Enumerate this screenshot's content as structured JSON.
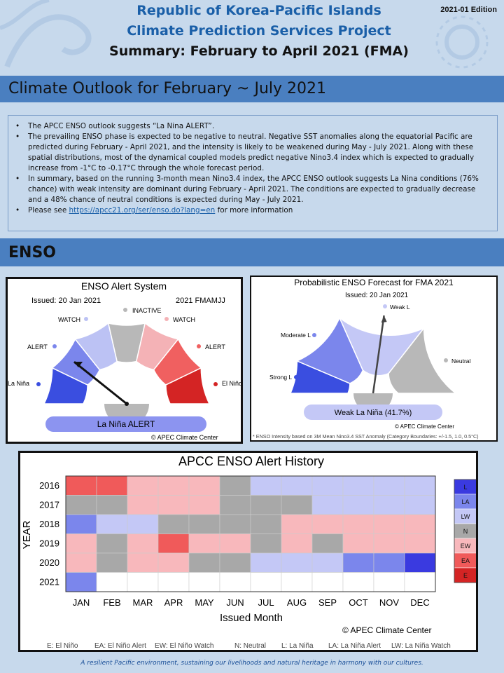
{
  "header": {
    "line1": "Republic of Korea-Pacific Islands",
    "line2": "Climate Prediction Services Project",
    "line3": "Summary: February to April 2021 (FMA)",
    "edition": "2021-01 Edition"
  },
  "outlook": {
    "title": "Climate Outlook for February ~ July 2021",
    "bullets": [
      "The APCC ENSO outlook suggests “La Nina ALERT”.",
      "The prevailing ENSO phase is expected to be negative to neutral. Negative SST anomalies along the equatorial Pacific are predicted during February - April 2021, and the intensity is likely to be weakened during May - July 2021. Along with these spatial distributions, most of the dynamical coupled models predict negative Nino3.4 index which is expected to gradually increase from -1°C to -0.17°C through the whole forecast period.",
      "In summary, based on the running 3-month mean Nino3.4 index, the APCC ENSO outlook suggests La Nina conditions (76% chance) with weak intensity are dominant during February - April 2021. The conditions are expected to gradually decrease and a 48% chance of neutral conditions is expected during May - July 2021."
    ],
    "link_prefix": "Please see ",
    "link_text": "https://apcc21.org/ser/enso.do?lang=en",
    "link_suffix": " for more information"
  },
  "enso_section": {
    "title": "ENSO"
  },
  "alert_system": {
    "title": "ENSO Alert System",
    "issued": "Issued: 20 Jan 2021",
    "period": "2021 FMAMJJ",
    "segments": [
      {
        "label": "La Niña",
        "color": "#3a4ee0"
      },
      {
        "label": "ALERT",
        "color": "#7b86ec"
      },
      {
        "label": "WATCH",
        "color": "#bcc2f4"
      },
      {
        "label": "INACTIVE",
        "color": "#b8b8b8"
      },
      {
        "label": "WATCH",
        "color": "#f4b2b6"
      },
      {
        "label": "ALERT",
        "color": "#f06060"
      },
      {
        "label": "El Niño",
        "color": "#d42424"
      }
    ],
    "pointer_segment": 1,
    "status": "La Niña ALERT",
    "status_color": "#8c94f0",
    "credit": "© APEC Climate Center"
  },
  "probabilistic": {
    "title": "Probabilistic ENSO Forecast for FMA 2021",
    "issued": "Issued: 20 Jan 2021",
    "segments": [
      {
        "label": "Strong L",
        "color": "#3a4ee0"
      },
      {
        "label": "Moderate L",
        "color": "#7b86ec"
      },
      {
        "label": "Weak L",
        "color": "#c4c8f6"
      },
      {
        "label": "Neutral",
        "color": "#b8b8b8"
      }
    ],
    "result_label": "Weak La Niña (41.7%)",
    "result_value": 41.7,
    "result_color": "#c4c8f6",
    "credit": "© APEC Climate Center",
    "footnote": "* ENSO Intensity based on 3M Mean Nino3.4 SST Anomaly (Category Boundaries: +/-1.5, 1.0, 0.5°C)"
  },
  "chart_data": {
    "type": "heatmap",
    "title": "APCC ENSO Alert History",
    "xlabel": "Issued Month",
    "ylabel": "YEAR",
    "x": [
      "JAN",
      "FEB",
      "MAR",
      "APR",
      "MAY",
      "JUN",
      "JUL",
      "AUG",
      "SEP",
      "OCT",
      "NOV",
      "DEC"
    ],
    "y": [
      "2016",
      "2017",
      "2018",
      "2019",
      "2020",
      "2021"
    ],
    "values": [
      [
        "EA",
        "EA",
        "EW",
        "EW",
        "EW",
        "N",
        "LW",
        "LW",
        "LW",
        "LW",
        "LW",
        "LW"
      ],
      [
        "N",
        "N",
        "EW",
        "EW",
        "EW",
        "N",
        "N",
        "N",
        "LW",
        "LW",
        "LW",
        "LW"
      ],
      [
        "LA",
        "LW",
        "LW",
        "N",
        "N",
        "N",
        "N",
        "EW",
        "EW",
        "EW",
        "EW",
        "EW"
      ],
      [
        "EW",
        "N",
        "EW",
        "EA",
        "EW",
        "EW",
        "N",
        "EW",
        "N",
        "EW",
        "EW",
        "EW"
      ],
      [
        "EW",
        "N",
        "EW",
        "EW",
        "N",
        "N",
        "LW",
        "LW",
        "LW",
        "LA",
        "LA",
        "L"
      ],
      [
        "LA",
        "",
        "",
        "",
        "",
        "",
        "",
        "",
        "",
        "",
        "",
        ""
      ]
    ],
    "legend": [
      {
        "code": "L",
        "color": "#3a3ae0"
      },
      {
        "code": "LA",
        "color": "#7b86ec"
      },
      {
        "code": "LW",
        "color": "#c4c8f6"
      },
      {
        "code": "N",
        "color": "#a8a8a8"
      },
      {
        "code": "EW",
        "color": "#f8b8bc"
      },
      {
        "code": "EA",
        "color": "#f05a5a"
      },
      {
        "code": "E",
        "color": "#d42424"
      }
    ],
    "legend_placement": "right",
    "credit": "© APEC Climate Center",
    "key_notes": [
      "E: El Niño",
      "EA: El Niño Alert",
      "EW: El Niño Watch",
      "N: Neutral",
      "L: La Niña",
      "LA: La Niña Alert",
      "LW: La Niña Watch"
    ]
  },
  "footer": {
    "tagline": "A resilient Pacific environment, sustaining our livelihoods and natural heritage in harmony with our cultures."
  }
}
